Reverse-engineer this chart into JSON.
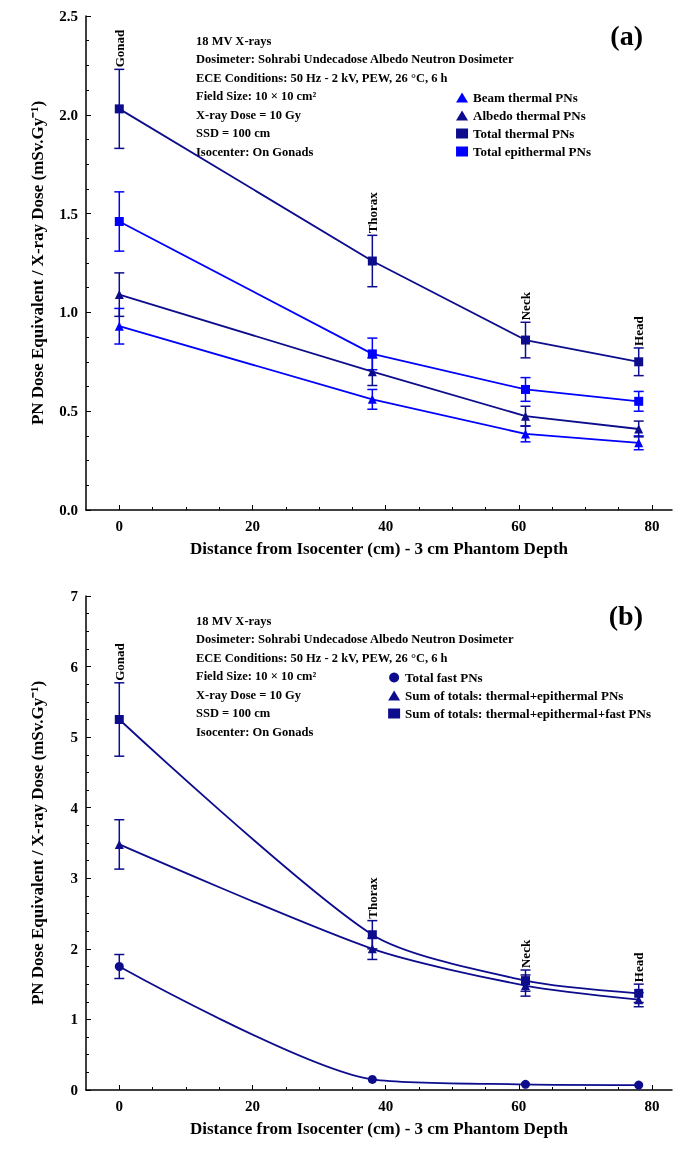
{
  "chart_data": [
    {
      "type": "line",
      "title": "(a)",
      "xlabel": "Distance from Isocenter (cm) - 3 cm Phantom Depth",
      "ylabel": "PN Dose Equivalent / X-ray Dose (mSv.Gy⁻¹)",
      "x": [
        0,
        38,
        61,
        78
      ],
      "xlim": [
        -5,
        83
      ],
      "xticks": [
        0,
        20,
        40,
        60,
        80
      ],
      "ylim": [
        0,
        2.5
      ],
      "yticks": [
        {
          "value": 0,
          "label": "0.0"
        },
        0.5,
        {
          "value": 1,
          "label": "1.0"
        },
        1.5,
        {
          "value": 2,
          "label": "2.0"
        },
        2.5
      ],
      "grid": false,
      "legend": "top right",
      "line_style": "solid",
      "series": [
        {
          "name": "Beam thermal PNs",
          "color": "#0000ff",
          "marker": "triangle",
          "values": [
            0.93,
            0.56,
            0.385,
            0.34
          ],
          "errors": [
            0.09,
            0.05,
            0.04,
            0.035
          ]
        },
        {
          "name": "Albedo thermal PNs",
          "color": "#0c0c8c",
          "marker": "triangle",
          "values": [
            1.09,
            0.7,
            0.475,
            0.41
          ],
          "errors": [
            0.11,
            0.07,
            0.05,
            0.04
          ]
        },
        {
          "name": "Total thermal PNs",
          "color": "#0c0c8c",
          "marker": "square",
          "values": [
            2.03,
            1.26,
            0.86,
            0.75
          ],
          "errors": [
            0.2,
            0.13,
            0.09,
            0.07
          ]
        },
        {
          "name": "Total epithermal PNs",
          "color": "#0000ff",
          "marker": "square",
          "values": [
            1.46,
            0.79,
            0.61,
            0.55
          ],
          "errors": [
            0.15,
            0.08,
            0.06,
            0.05
          ]
        }
      ],
      "annotations": [
        "18 MV X-rays",
        "Dosimeter: Sohrabi Undecadose Albedo Neutron Dosimeter",
        "ECE Conditions: 50 Hz - 2 kV, PEW, 26 °C, 6 h",
        "Field Size: 10 × 10 cm²",
        "X-ray Dose = 10 Gy",
        "SSD = 100 cm",
        "Isocenter: On Gonads",
        {
          "text": "Gonad",
          "x": 0,
          "y": 2.23
        },
        {
          "text": "Thorax",
          "x": 38,
          "y": 1.26
        },
        {
          "text": "Neck",
          "x": 61,
          "y": 0.86
        },
        {
          "text": "Head",
          "x": 78,
          "y": 0.75
        }
      ]
    },
    {
      "type": "line",
      "title": "(b)",
      "xlabel": "Distance from Isocenter (cm) - 3 cm Phantom Depth",
      "ylabel": "PN Dose Equivalent / X-ray Dose (mSv.Gy⁻¹)",
      "x": [
        0,
        38,
        61,
        78
      ],
      "xlim": [
        -5,
        83
      ],
      "xticks": [
        0,
        20,
        40,
        60,
        80
      ],
      "ylim": [
        0,
        7
      ],
      "yticks": [
        0,
        1,
        2,
        3,
        4,
        5,
        6,
        7
      ],
      "grid": false,
      "legend": "top right",
      "line_style": "solid",
      "series": [
        {
          "name": "Total fast PNs",
          "color": "#0c0c8c",
          "marker": "circle",
          "values": [
            1.75,
            0.15,
            0.08,
            0.07
          ],
          "errors": [
            0.17,
            null,
            null,
            null
          ]
        },
        {
          "name": "Sum of totals: thermal+epithermal PNs",
          "color": "#0c0c8c",
          "marker": "triangle",
          "values": [
            3.48,
            2.0,
            1.48,
            1.28
          ],
          "errors": [
            0.35,
            0.15,
            0.15,
            0.1
          ]
        },
        {
          "name": "Sum of totals: thermal+epithermal+fast PNs",
          "color": "#0c0c8c",
          "marker": "square",
          "values": [
            5.25,
            2.2,
            1.55,
            1.37
          ],
          "errors": [
            0.52,
            0.2,
            0.15,
            0.13
          ]
        }
      ],
      "annotations": [
        "18 MV X-rays",
        "Dosimeter: Sohrabi Undecadose Albedo Neutron Dosimeter",
        "ECE Conditions: 50 Hz - 2 kV, PEW, 26 °C, 6 h",
        "Field Size: 10 × 10 cm²",
        "X-ray Dose = 10 Gy",
        "SSD = 100 cm",
        "Isocenter: On Gonads",
        {
          "text": "Gonad",
          "x": 0,
          "y": 5.77
        },
        {
          "text": "Thorax",
          "x": 38,
          "y": 2.2
        },
        {
          "text": "Neck",
          "x": 61,
          "y": 1.55
        },
        {
          "text": "Head",
          "x": 78,
          "y": 1.37
        }
      ]
    }
  ]
}
